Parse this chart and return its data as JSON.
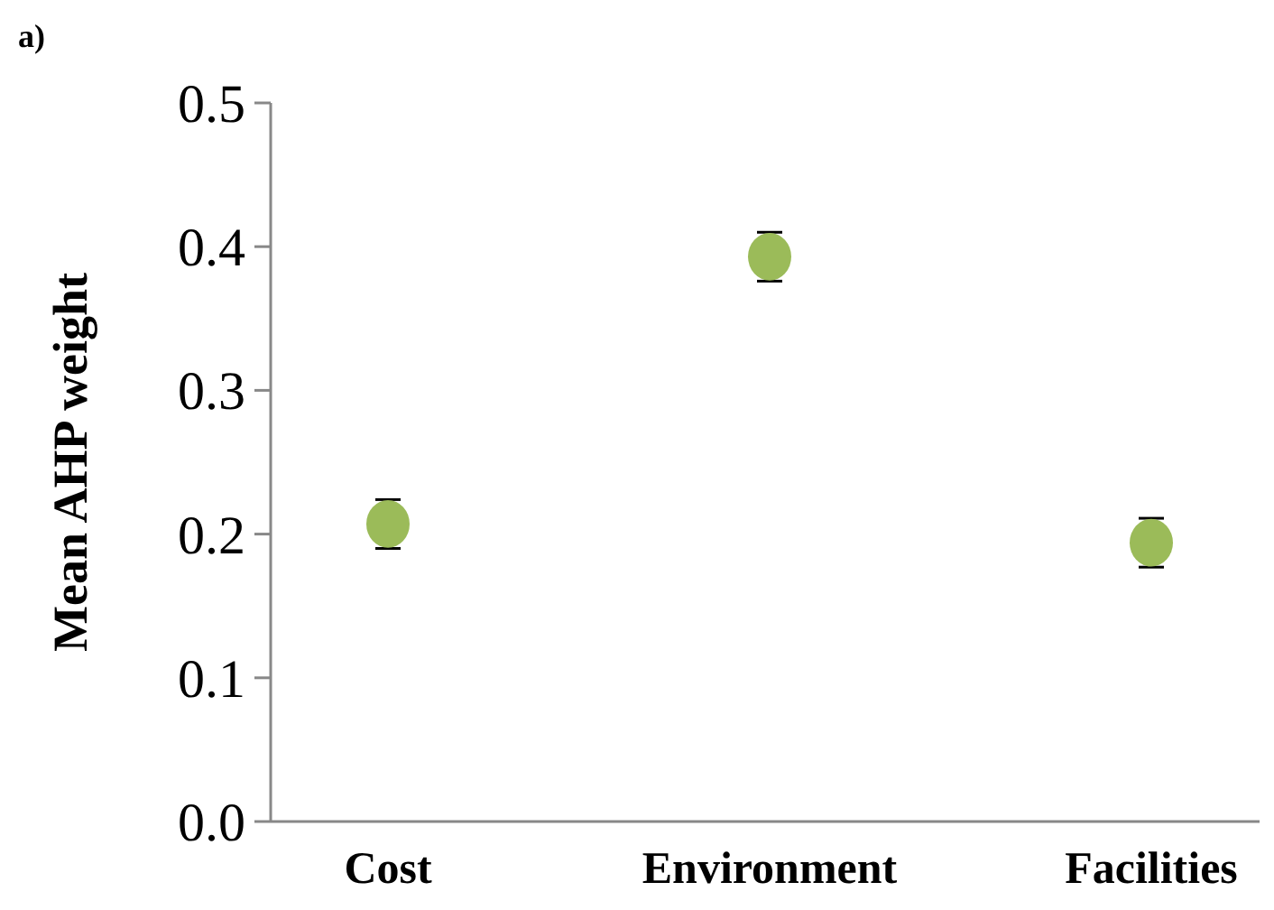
{
  "chart_data": {
    "type": "scatter",
    "ylabel": "Mean AHP weight",
    "annotations": [
      "a)"
    ],
    "categories": [
      "Cost",
      "Environment",
      "Facilities"
    ],
    "series": [
      {
        "color": "#9bbb59",
        "values": [
          0.207,
          0.393,
          0.194
        ],
        "errors": [
          0.017,
          0.017,
          0.017
        ]
      }
    ],
    "ylim": [
      0,
      0.5
    ],
    "yticks": [
      {
        "value": 0,
        "label": "0.0"
      },
      0.1,
      0.2,
      0.3,
      0.4,
      0.5
    ],
    "grid": false,
    "marker": "circle"
  }
}
